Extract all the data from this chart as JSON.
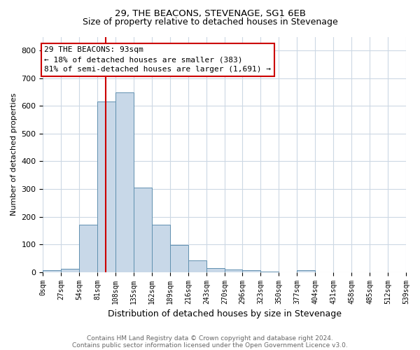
{
  "title1": "29, THE BEACONS, STEVENAGE, SG1 6EB",
  "title2": "Size of property relative to detached houses in Stevenage",
  "xlabel": "Distribution of detached houses by size in Stevenage",
  "ylabel": "Number of detached properties",
  "bin_edges": [
    0,
    27,
    54,
    81,
    108,
    135,
    162,
    189,
    216,
    243,
    270,
    296,
    323,
    350,
    377,
    404,
    431,
    458,
    485,
    512,
    539
  ],
  "bar_heights": [
    8,
    12,
    170,
    615,
    650,
    305,
    172,
    97,
    42,
    15,
    10,
    7,
    3,
    0,
    8,
    0,
    0,
    0,
    0,
    0
  ],
  "bar_color": "#c8d8e8",
  "bar_edge_color": "#6090b0",
  "red_line_x": 93,
  "ylim": [
    0,
    850
  ],
  "yticks": [
    0,
    100,
    200,
    300,
    400,
    500,
    600,
    700,
    800
  ],
  "annotation_line1": "29 THE BEACONS: 93sqm",
  "annotation_line2": "← 18% of detached houses are smaller (383)",
  "annotation_line3": "81% of semi-detached houses are larger (1,691) →",
  "annotation_box_color": "#ffffff",
  "annotation_box_edge": "#cc0000",
  "footnote1": "Contains HM Land Registry data © Crown copyright and database right 2024.",
  "footnote2": "Contains public sector information licensed under the Open Government Licence v3.0.",
  "background_color": "#ffffff",
  "grid_color": "#ccd8e4",
  "title1_fontsize": 9.5,
  "title2_fontsize": 9,
  "ylabel_fontsize": 8,
  "xlabel_fontsize": 9,
  "annotation_fontsize": 8,
  "footnote_fontsize": 6.5
}
